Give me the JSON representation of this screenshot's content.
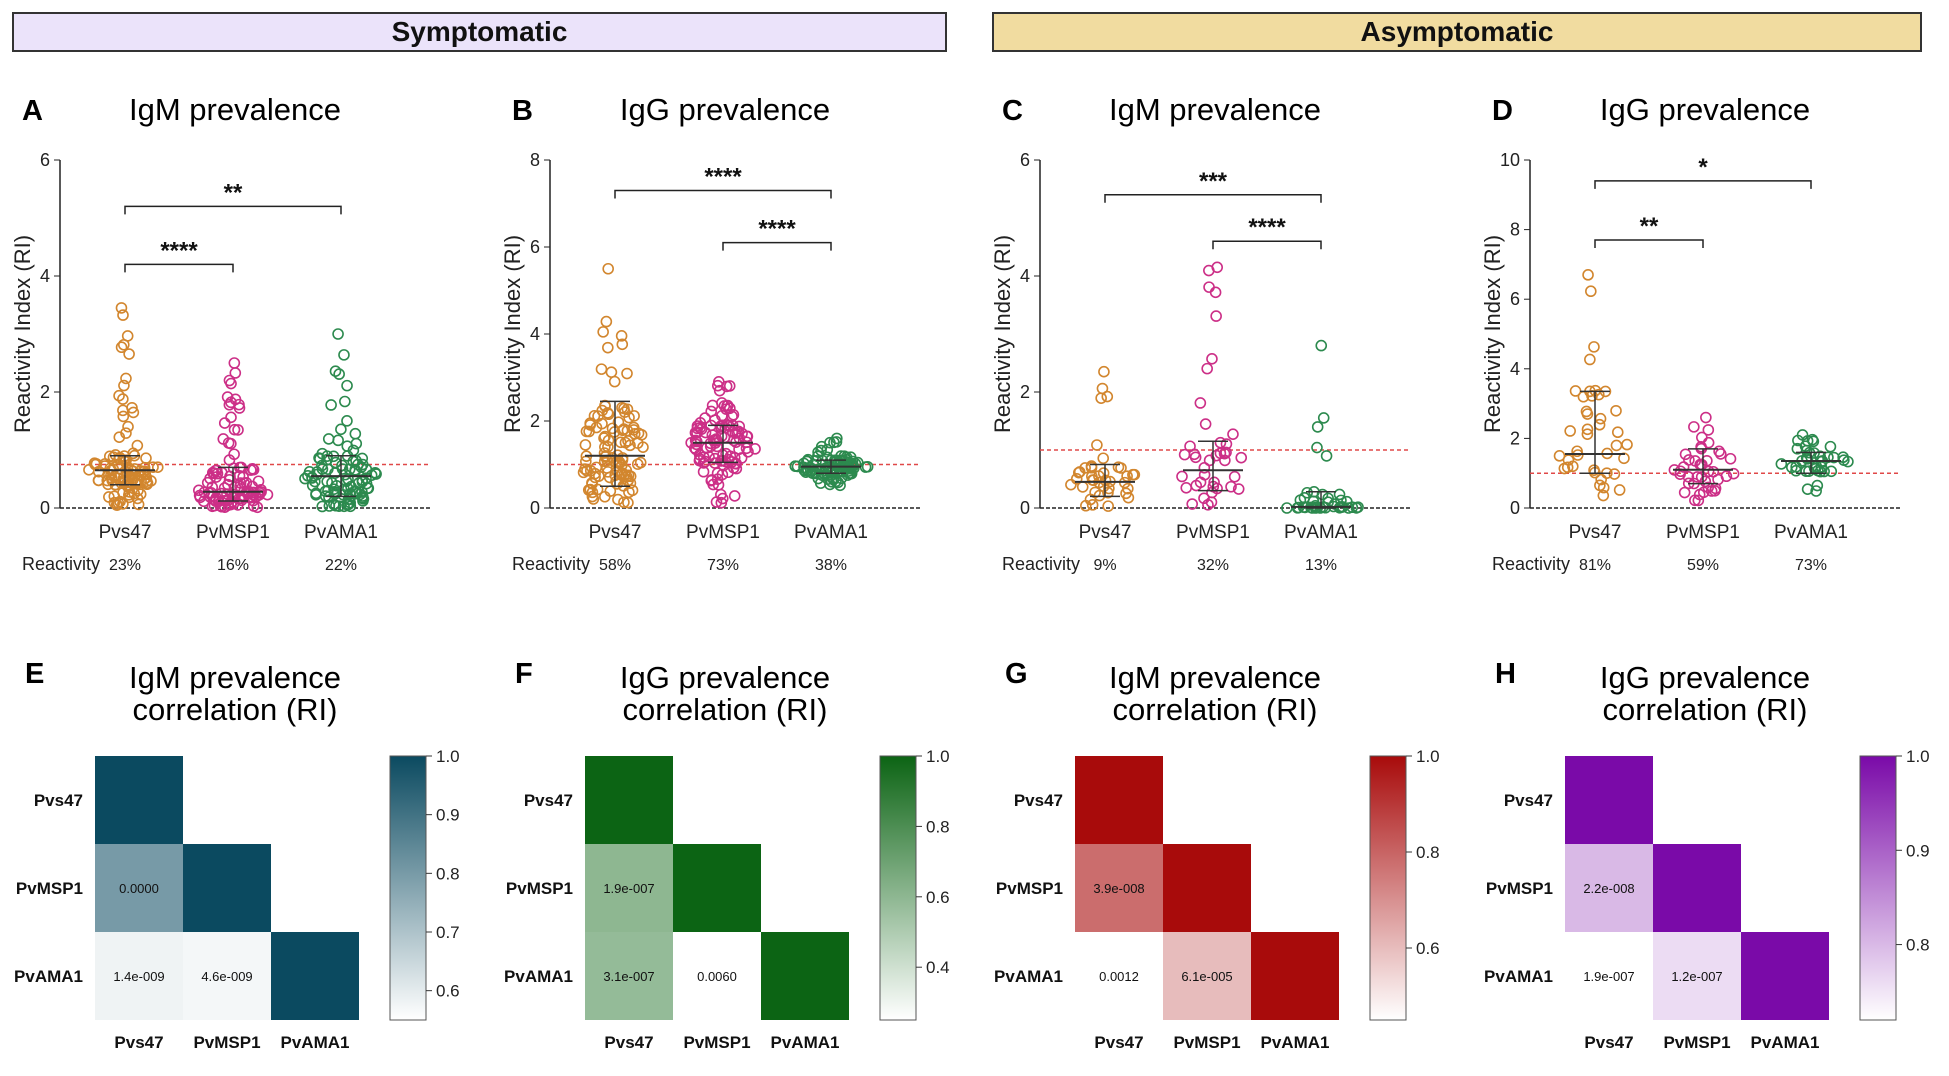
{
  "banners": {
    "symptomatic": "Symptomatic",
    "asymptomatic": "Asymptomatic"
  },
  "banner_colors": {
    "symptomatic": "#ebe3fa",
    "asymptomatic": "#f1dca0"
  },
  "labels": {
    "y_axis": "Reactivity Index (RI)",
    "reactivity": "Reactivity"
  },
  "series_colors": [
    "#d2862e",
    "#cc2f87",
    "#2c8a4e"
  ],
  "chart_data": [
    {
      "type": "scatter",
      "id": "A",
      "title": "IgM prevalence",
      "ylabel": "Reactivity Index (RI)",
      "ylim": [
        0,
        6
      ],
      "yticks": [
        0,
        2,
        4,
        6
      ],
      "categories": [
        "Pvs47",
        "PvMSP1",
        "PvAMA1"
      ],
      "cutoff": 0.75,
      "series": [
        {
          "name": "Pvs47",
          "median": 0.65,
          "q1": 0.4,
          "q3": 0.9,
          "min": 0.05,
          "max": 3.45,
          "n": 110
        },
        {
          "name": "PvMSP1",
          "median": 0.28,
          "q1": 0.12,
          "q3": 0.7,
          "min": 0.0,
          "max": 2.5,
          "n": 105
        },
        {
          "name": "PvAMA1",
          "median": 0.55,
          "q1": 0.2,
          "q3": 0.9,
          "min": 0.0,
          "max": 3.0,
          "n": 100
        }
      ],
      "reactivity": [
        "23%",
        "16%",
        "22%"
      ],
      "significance": [
        {
          "pair": [
            0,
            1
          ],
          "label": "****",
          "level": 4.2
        },
        {
          "pair": [
            0,
            2
          ],
          "label": "**",
          "level": 5.2
        }
      ]
    },
    {
      "type": "scatter",
      "id": "B",
      "title": "IgG prevalence",
      "ylabel": "Reactivity Index (RI)",
      "ylim": [
        0,
        8
      ],
      "yticks": [
        0,
        2,
        4,
        6,
        8
      ],
      "categories": [
        "Pvs47",
        "PvMSP1",
        "PvAMA1"
      ],
      "cutoff": 1.0,
      "series": [
        {
          "name": "Pvs47",
          "median": 1.2,
          "q1": 0.5,
          "q3": 2.45,
          "min": 0.05,
          "max": 5.5,
          "n": 110
        },
        {
          "name": "PvMSP1",
          "median": 1.5,
          "q1": 1.05,
          "q3": 1.9,
          "min": 0.1,
          "max": 2.9,
          "n": 105
        },
        {
          "name": "PvAMA1",
          "median": 0.95,
          "q1": 0.8,
          "q3": 1.1,
          "min": 0.5,
          "max": 1.6,
          "n": 100
        }
      ],
      "reactivity": [
        "58%",
        "73%",
        "38%"
      ],
      "significance": [
        {
          "pair": [
            0,
            2
          ],
          "label": "****",
          "level": 7.3
        },
        {
          "pair": [
            1,
            2
          ],
          "label": "****",
          "level": 6.1
        }
      ]
    },
    {
      "type": "scatter",
      "id": "C",
      "title": "IgM prevalence",
      "ylabel": "Reactivity Index (RI)",
      "ylim": [
        0,
        6
      ],
      "yticks": [
        0,
        2,
        4,
        6
      ],
      "categories": [
        "Pvs47",
        "PvMSP1",
        "PvAMA1"
      ],
      "cutoff": 1.0,
      "series": [
        {
          "name": "Pvs47",
          "median": 0.45,
          "q1": 0.2,
          "q3": 0.75,
          "min": 0.0,
          "max": 2.35,
          "n": 40
        },
        {
          "name": "PvMSP1",
          "median": 0.65,
          "q1": 0.3,
          "q3": 1.15,
          "min": 0.0,
          "max": 4.15,
          "n": 40
        },
        {
          "name": "PvAMA1",
          "median": 0.02,
          "q1": 0.0,
          "q3": 0.28,
          "min": 0.0,
          "max": 2.8,
          "n": 40
        }
      ],
      "reactivity": [
        "9%",
        "32%",
        "13%"
      ],
      "significance": [
        {
          "pair": [
            0,
            2
          ],
          "label": "***",
          "level": 5.4
        },
        {
          "pair": [
            1,
            2
          ],
          "label": "****",
          "level": 4.6
        }
      ]
    },
    {
      "type": "scatter",
      "id": "D",
      "title": "IgG prevalence",
      "ylabel": "Reactivity Index (RI)",
      "ylim": [
        0,
        10
      ],
      "yticks": [
        0,
        2,
        4,
        6,
        8,
        10
      ],
      "categories": [
        "Pvs47",
        "PvMSP1",
        "PvAMA1"
      ],
      "cutoff": 1.0,
      "series": [
        {
          "name": "Pvs47",
          "median": 1.55,
          "q1": 1.0,
          "q3": 3.35,
          "min": 0.3,
          "max": 6.7,
          "n": 40
        },
        {
          "name": "PvMSP1",
          "median": 1.1,
          "q1": 0.7,
          "q3": 1.7,
          "min": 0.1,
          "max": 2.6,
          "n": 40
        },
        {
          "name": "PvAMA1",
          "median": 1.35,
          "q1": 1.0,
          "q3": 1.6,
          "min": 0.3,
          "max": 2.1,
          "n": 40
        }
      ],
      "reactivity": [
        "81%",
        "59%",
        "73%"
      ],
      "significance": [
        {
          "pair": [
            0,
            1
          ],
          "label": "**",
          "level": 7.7
        },
        {
          "pair": [
            0,
            2
          ],
          "label": "*",
          "level": 9.4
        }
      ]
    },
    {
      "type": "heatmap",
      "id": "E",
      "title": "IgM prevalence",
      "subtitle": "correlation (RI)",
      "labels": [
        "Pvs47",
        "PvMSP1",
        "PvAMA1"
      ],
      "r": [
        [
          1.0,
          null,
          null
        ],
        [
          0.8,
          1.0,
          null
        ],
        [
          0.58,
          0.57,
          1.0
        ]
      ],
      "pvalues": [
        [
          null,
          null,
          null
        ],
        [
          "0.0000",
          null,
          null
        ],
        [
          "1.4e-009",
          "4.6e-009",
          null
        ]
      ],
      "colorbar": {
        "min": 0.55,
        "max": 1.0,
        "ticks": [
          "1.0",
          "0.9",
          "0.8",
          "0.7",
          "0.6"
        ],
        "values": [
          1.0,
          0.9,
          0.8,
          0.7,
          0.6
        ]
      },
      "color": "#0b4a60"
    },
    {
      "type": "heatmap",
      "id": "F",
      "title": "IgG prevalence",
      "subtitle": "correlation (RI)",
      "labels": [
        "Pvs47",
        "PvMSP1",
        "PvAMA1"
      ],
      "r": [
        [
          1.0,
          null,
          null
        ],
        [
          0.6,
          1.0,
          null
        ],
        [
          0.58,
          0.25,
          1.0
        ]
      ],
      "pvalues": [
        [
          null,
          null,
          null
        ],
        [
          "1.9e-007",
          null,
          null
        ],
        [
          "3.1e-007",
          "0.0060",
          null
        ]
      ],
      "colorbar": {
        "min": 0.25,
        "max": 1.0,
        "ticks": [
          "1.0",
          "0.8",
          "0.6",
          "0.4"
        ],
        "values": [
          1.0,
          0.8,
          0.6,
          0.4
        ]
      },
      "color": "#0c6414"
    },
    {
      "type": "heatmap",
      "id": "G",
      "title": "IgM prevalence",
      "subtitle": "correlation (RI)",
      "labels": [
        "Pvs47",
        "PvMSP1",
        "PvAMA1"
      ],
      "r": [
        [
          1.0,
          null,
          null
        ],
        [
          0.78,
          1.0,
          null
        ],
        [
          0.45,
          0.6,
          1.0
        ]
      ],
      "pvalues": [
        [
          null,
          null,
          null
        ],
        [
          "3.9e-008",
          null,
          null
        ],
        [
          "0.0012",
          "6.1e-005",
          null
        ]
      ],
      "colorbar": {
        "min": 0.45,
        "max": 1.0,
        "ticks": [
          "1.0",
          "0.8",
          "0.6"
        ],
        "values": [
          1.0,
          0.8,
          0.6
        ]
      },
      "color": "#a80b0b"
    },
    {
      "type": "heatmap",
      "id": "H",
      "title": "IgG prevalence",
      "subtitle": "correlation (RI)",
      "labels": [
        "Pvs47",
        "PvMSP1",
        "PvAMA1"
      ],
      "r": [
        [
          1.0,
          null,
          null
        ],
        [
          0.8,
          1.0,
          null
        ],
        [
          0.72,
          0.76,
          1.0
        ]
      ],
      "pvalues": [
        [
          null,
          null,
          null
        ],
        [
          "2.2e-008",
          null,
          null
        ],
        [
          "1.9e-007",
          "1.2e-007",
          null
        ]
      ],
      "colorbar": {
        "min": 0.72,
        "max": 1.0,
        "ticks": [
          "1.0",
          "0.9",
          "0.8"
        ],
        "values": [
          1.0,
          0.9,
          0.8
        ]
      },
      "color": "#7a0aa8"
    }
  ]
}
